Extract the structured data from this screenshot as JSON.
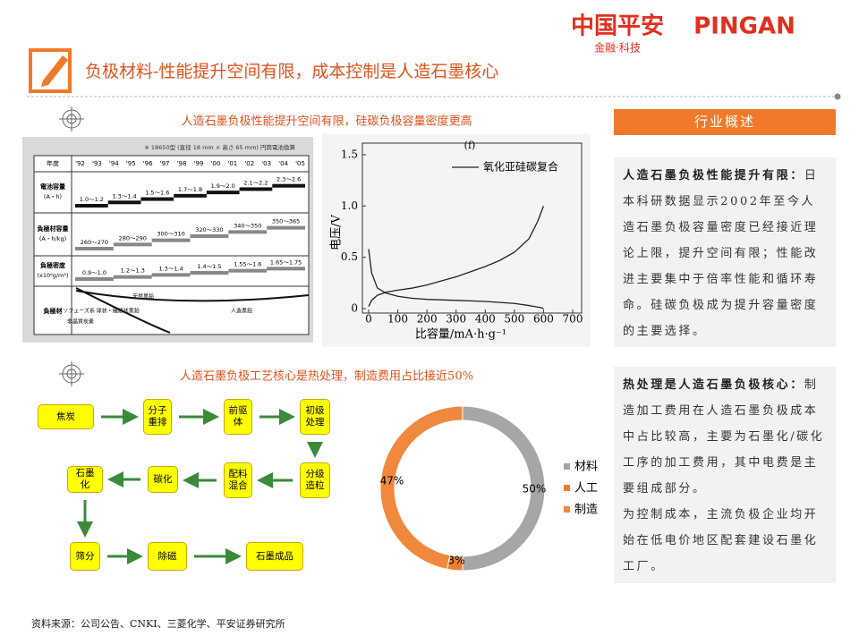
{
  "header": {
    "logo_cn": "中国平安",
    "logo_en": "PINGAN",
    "logo_sub": "金融·科技",
    "title": "负极材料-性能提升空间有限，成本控制是人造石墨核心"
  },
  "section1": {
    "title": "人造石墨负极性能提升空间有限，硅碳负极容量密度更高"
  },
  "section2": {
    "title": "人造石墨负极工艺核心是热处理，制造费用占比接近50%"
  },
  "table_image": {
    "note": "※ 18650型 (直径 18 mm × 高さ 65 mm) 円筒電池換算",
    "year_header": "年度",
    "years": [
      "'92",
      "'93",
      "'94",
      "'95",
      "'96",
      "'97",
      "'98",
      "'99",
      "'00",
      "'01",
      "'02",
      "'03",
      "'04",
      "'05"
    ],
    "rows": [
      {
        "label": "電池容量",
        "unit": "(A・h)",
        "ranges": [
          "1.0〜1.2",
          "1.3〜1.4",
          "1.5〜1.6",
          "1.7〜1.8",
          "1.9〜2.0",
          "2.1〜2.2",
          "2.3〜2.6"
        ]
      },
      {
        "label": "負極材容量",
        "unit": "(A・h/kg)",
        "ranges": [
          "260〜270",
          "280〜290",
          "300〜310",
          "320〜330",
          "340〜350",
          "350〜365"
        ]
      },
      {
        "label": "負極密度",
        "unit": "(x10⁶g/m²)",
        "ranges": [
          "0.9〜1.0",
          "1.2〜1.3",
          "1.3〜1.4",
          "1.4〜1.5",
          "1.55〜1.6",
          "1.65〜1.75"
        ]
      }
    ],
    "material_label": "負極材",
    "materials": [
      "天然黒鉛",
      "メソフェーズ系 球状・繊維状黒鉛",
      "非晶質炭素",
      "人造黒鉛"
    ]
  },
  "chart_data": [
    {
      "type": "line",
      "annotation": "(f)",
      "xlabel": "比容量/mA·h·g⁻¹",
      "ylabel": "电压/V",
      "xlim": [
        0,
        700
      ],
      "xticks": [
        0,
        100,
        200,
        300,
        400,
        500,
        600,
        700
      ],
      "ylim": [
        0,
        1.5
      ],
      "yticks": [
        0,
        0.5,
        {
          "value": 1.0,
          "label": "1.0"
        },
        1.5
      ],
      "color": "#222222",
      "series": [
        {
          "name": "氧化亚硅碳复合",
          "x": [
            0,
            10,
            30,
            60,
            100,
            150,
            200,
            250,
            300,
            350,
            400,
            450,
            500,
            550,
            580,
            600
          ],
          "values": [
            0.02,
            0.08,
            0.13,
            0.16,
            0.18,
            0.2,
            0.23,
            0.27,
            0.31,
            0.36,
            0.41,
            0.47,
            0.55,
            0.68,
            0.85,
            1.0
          ]
        },
        {
          "x": [
            0,
            10,
            30,
            60,
            100,
            150,
            200,
            300,
            400,
            500,
            550,
            570,
            590,
            600
          ],
          "values": [
            0.58,
            0.35,
            0.2,
            0.15,
            0.12,
            0.1,
            0.09,
            0.08,
            0.07,
            0.05,
            0.03,
            0.02,
            0.01,
            0.0
          ]
        }
      ]
    },
    {
      "type": "pie",
      "categories": [
        "材料",
        "人工",
        "制造"
      ],
      "values": [
        50,
        3,
        47
      ],
      "value_labels": [
        "50%",
        "3%",
        "47%"
      ],
      "colors": [
        "#a6a6a6",
        "#ed7d31",
        "#f0883e"
      ]
    }
  ],
  "flow": {
    "nodes": [
      {
        "label": "焦炭"
      },
      {
        "label": "分子重排"
      },
      {
        "label": "前驱体"
      },
      {
        "label": "初级处理"
      },
      {
        "label": "分级造粒"
      },
      {
        "label": "配料混合"
      },
      {
        "label": "碳化"
      },
      {
        "label": "石墨化"
      },
      {
        "label": "筛分"
      },
      {
        "label": "除磁"
      },
      {
        "label": "石墨成品"
      }
    ]
  },
  "sidebar": {
    "header": "行业概述",
    "box1": {
      "lead": "人造石墨负极性能提升有限：",
      "body": "日本科研数据显示2002年至今人造石墨负极容量密度已经接近理论上限，提升空间有限；性能改进主要集中于倍率性能和循环寿命。硅碳负极成为提升容量密度的主要选择。"
    },
    "box2": {
      "lead": "热处理是人造石墨负极核心：",
      "body": "制造加工费用在人造石墨负极成本中占比较高，主要为石墨化/碳化工序的加工费用，其中电费是主要组成部分。",
      "body2": "为控制成本，主流负极企业均开始在低电价地区配套建设石墨化工厂。"
    }
  },
  "source": "资料来源：公司公告、CNKI、三菱化学、平安证券研究所"
}
